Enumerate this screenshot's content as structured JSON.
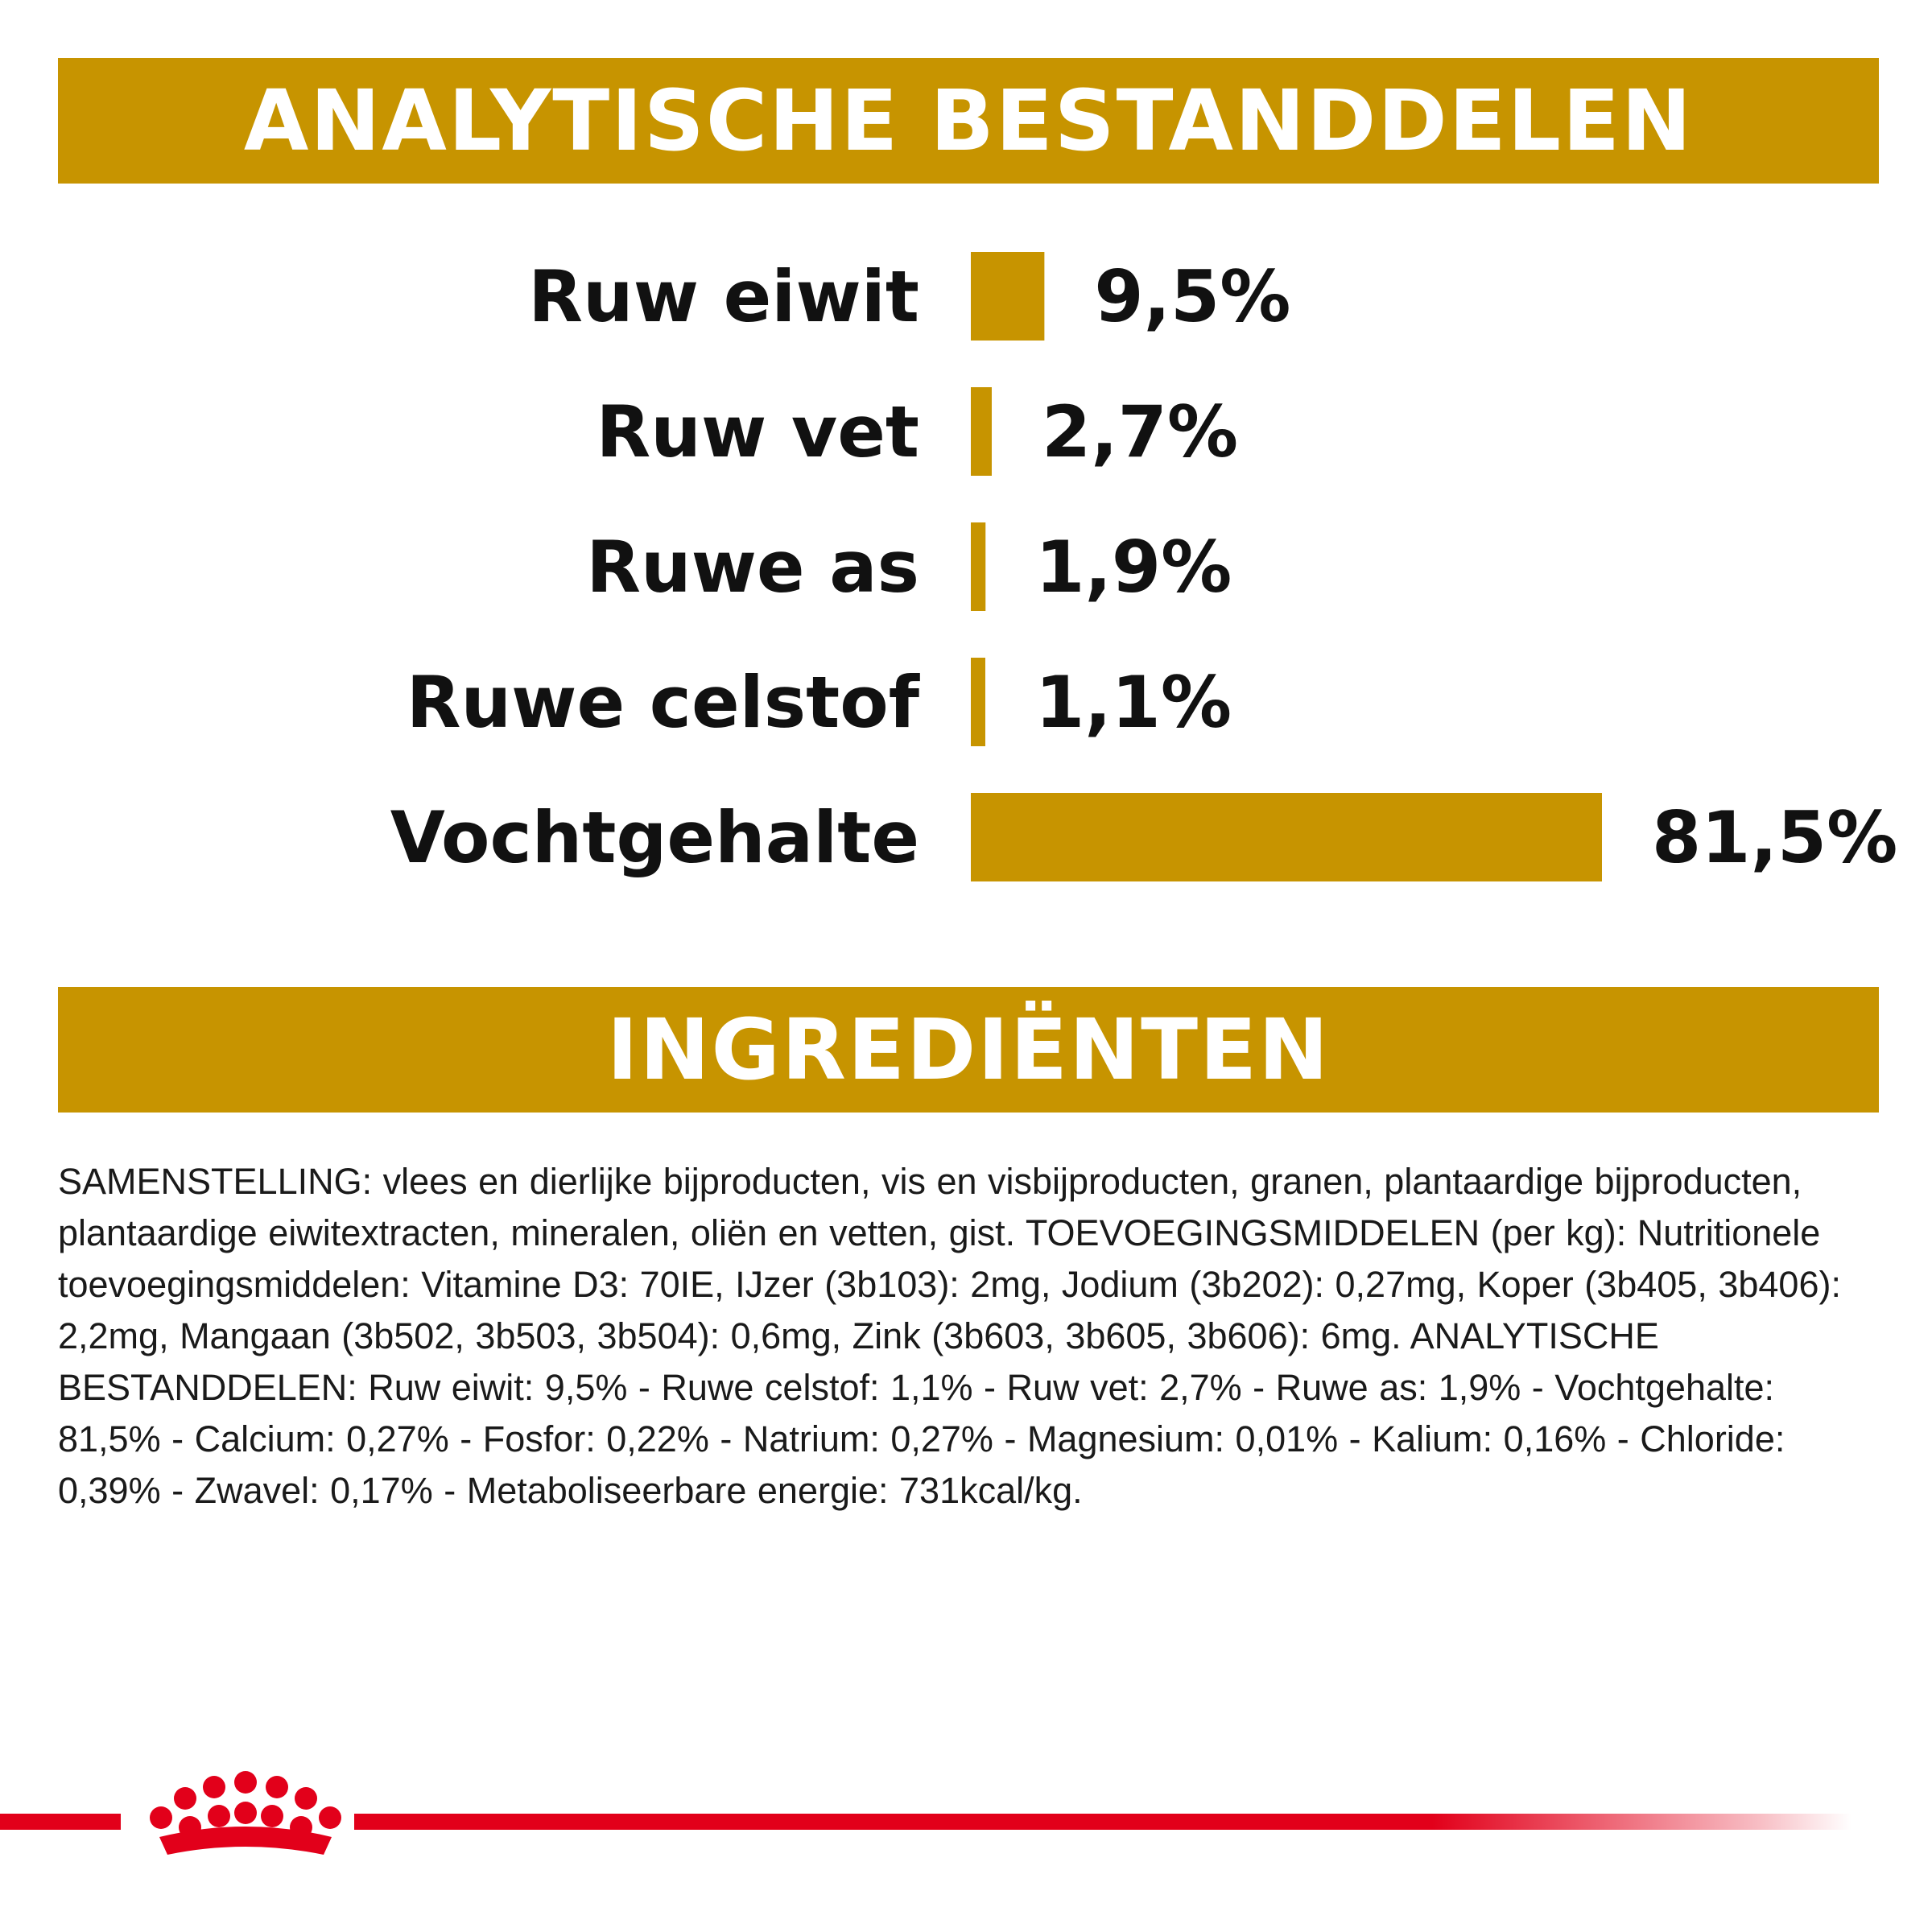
{
  "colors": {
    "accent": "#c79400",
    "brand_red": "#e2001a",
    "banner_text": "#ffffff"
  },
  "banners": {
    "analytics_title": "ANALYTISCHE BESTANDDELEN",
    "ingredients_title": "INGREDIËNTEN"
  },
  "chart_data": {
    "type": "bar",
    "orientation": "horizontal",
    "categories": [
      "Ruw eiwit",
      "Ruw vet",
      "Ruwe as",
      "Ruwe celstof",
      "Vochtgehalte"
    ],
    "values": [
      9.5,
      2.7,
      1.9,
      1.1,
      81.5
    ],
    "value_labels": [
      "9,5%",
      "2,7%",
      "1,9%",
      "1,1%",
      "81,5%"
    ],
    "unit": "%",
    "xlim": [
      0,
      81.5
    ],
    "grid": false,
    "legend": "none"
  },
  "ingredients": {
    "text": "SAMENSTELLING: vlees en dierlijke bijproducten, vis en visbijproducten, granen, plantaardige bijproducten, plantaardige eiwitextracten, mineralen, oliën en vetten, gist. TOEVOEGINGSMIDDELEN (per kg): Nutritionele toevoegingsmiddelen: Vitamine D3: 70IE, IJzer (3b103): 2mg, Jodium (3b202): 0,27mg, Koper (3b405, 3b406): 2,2mg, Mangaan (3b502, 3b503, 3b504): 0,6mg, Zink (3b603, 3b605, 3b606): 6mg. ANALYTISCHE BESTANDDELEN: Ruw eiwit: 9,5% - Ruwe celstof: 1,1% - Ruw vet: 2,7% - Ruwe as: 1,9% - Vochtgehalte: 81,5% - Calcium: 0,27% - Fosfor: 0,22% - Natrium: 0,27% - Magnesium: 0,01% - Kalium: 0,16% - Chloride: 0,39% - Zwavel: 0,17% - Metaboliseerbare energie: 731kcal/kg."
  },
  "footer": {
    "logo_icon": "royal-canin-crown-icon"
  }
}
